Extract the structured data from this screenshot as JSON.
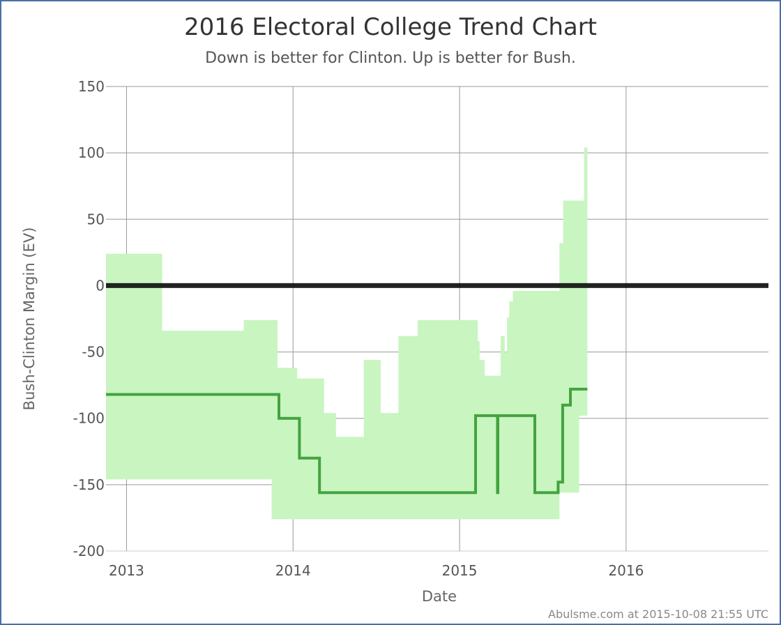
{
  "chart_data": {
    "type": "line",
    "title": "2016 Electoral College Trend Chart",
    "subtitle": "Down is better for Clinton. Up is better for Bush.",
    "xlabel": "Date",
    "ylabel": "Bush-Clinton Margin (EV)",
    "credit": "Abulsme.com at 2015-10-08 21:55 UTC",
    "xlim": [
      "2012-11-17",
      "2016-11-08"
    ],
    "ylim": [
      -200,
      150
    ],
    "x_ticks": [
      {
        "date": "2013-01-01",
        "label": "2013"
      },
      {
        "date": "2014-01-01",
        "label": "2014"
      },
      {
        "date": "2015-01-01",
        "label": "2015"
      },
      {
        "date": "2016-01-01",
        "label": "2016"
      }
    ],
    "y_ticks": [
      {
        "value": 150,
        "label": "150"
      },
      {
        "value": 100,
        "label": "100"
      },
      {
        "value": 50,
        "label": "50"
      },
      {
        "value": 0,
        "label": "0"
      },
      {
        "value": -50,
        "label": "-50"
      },
      {
        "value": -100,
        "label": "-100"
      },
      {
        "value": -150,
        "label": "-150"
      },
      {
        "value": -200,
        "label": "-200"
      }
    ],
    "grid": true,
    "zero_line": true,
    "colors": {
      "band": "#c8f5c0",
      "line": "#44a340",
      "zero": "#000000",
      "grid": "#999999",
      "axis_grid": "#cccccc"
    },
    "series": [
      {
        "type": "band",
        "points": [
          {
            "x": "2012-11-17",
            "low": -146,
            "high": 24
          },
          {
            "x": "2013-03-20",
            "low": -146,
            "high": -34
          },
          {
            "x": "2013-09-15",
            "low": -146,
            "high": -26
          },
          {
            "x": "2013-11-15",
            "low": -176,
            "high": -26
          },
          {
            "x": "2013-11-28",
            "low": -176,
            "high": -62
          },
          {
            "x": "2014-01-10",
            "low": -176,
            "high": -70
          },
          {
            "x": "2014-03-10",
            "low": -176,
            "high": -96
          },
          {
            "x": "2014-04-05",
            "low": -176,
            "high": -114
          },
          {
            "x": "2014-06-05",
            "low": -176,
            "high": -56
          },
          {
            "x": "2014-07-12",
            "low": -176,
            "high": -96
          },
          {
            "x": "2014-08-20",
            "low": -176,
            "high": -38
          },
          {
            "x": "2014-10-01",
            "low": -176,
            "high": -26
          },
          {
            "x": "2015-02-10",
            "low": -176,
            "high": -42
          },
          {
            "x": "2015-02-14",
            "low": -176,
            "high": -56
          },
          {
            "x": "2015-02-25",
            "low": -176,
            "high": -68
          },
          {
            "x": "2015-04-01",
            "low": -176,
            "high": -38
          },
          {
            "x": "2015-04-10",
            "low": -176,
            "high": -50
          },
          {
            "x": "2015-04-15",
            "low": -176,
            "high": -24
          },
          {
            "x": "2015-04-20",
            "low": -176,
            "high": -12
          },
          {
            "x": "2015-04-28",
            "low": -176,
            "high": -4
          },
          {
            "x": "2015-08-08",
            "low": -156,
            "high": 32
          },
          {
            "x": "2015-08-16",
            "low": -156,
            "high": 64
          },
          {
            "x": "2015-09-20",
            "low": -98,
            "high": 64
          },
          {
            "x": "2015-10-01",
            "low": -98,
            "high": 104
          },
          {
            "x": "2015-10-08",
            "low": -98,
            "high": 104
          }
        ]
      },
      {
        "type": "line",
        "points": [
          {
            "x": "2012-11-17",
            "y": -82
          },
          {
            "x": "2013-12-01",
            "y": -100
          },
          {
            "x": "2014-01-15",
            "y": -130
          },
          {
            "x": "2014-02-28",
            "y": -156
          },
          {
            "x": "2015-02-05",
            "y": -98
          },
          {
            "x": "2015-03-25",
            "y": -156
          },
          {
            "x": "2015-03-26",
            "y": -98
          },
          {
            "x": "2015-06-15",
            "y": -156
          },
          {
            "x": "2015-08-05",
            "y": -148
          },
          {
            "x": "2015-08-15",
            "y": -90
          },
          {
            "x": "2015-09-01",
            "y": -78
          },
          {
            "x": "2015-10-08",
            "y": -78
          }
        ]
      }
    ]
  }
}
